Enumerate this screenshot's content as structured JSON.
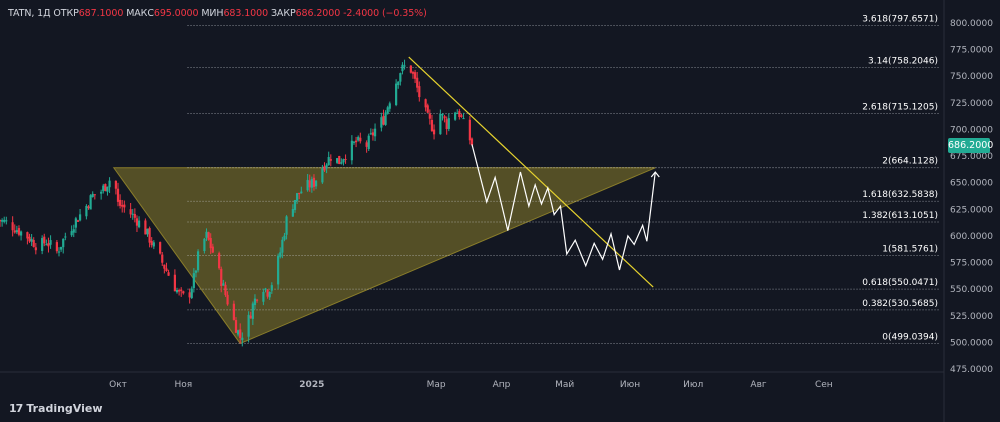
{
  "header": {
    "symbol": "TATN, 1Д",
    "open_label": "ОТКР",
    "open": "687.1000",
    "high_label": "МАКС",
    "high": "695.0000",
    "low_label": "МИН",
    "low": "683.1000",
    "close_label": "ЗАКР",
    "close": "686.2000",
    "change": "-2.4000 (−0.35%)"
  },
  "brand": {
    "logo": "17",
    "name": "TradingView"
  },
  "colors": {
    "up": "#22ab94",
    "down": "#f23645",
    "fib": "#d1d4dc",
    "triangle": "#8a7d2a",
    "trend": "#e6d32e",
    "projection": "#ffffff"
  },
  "chart_data": {
    "type": "candlestick",
    "title": "",
    "ylim": [
      470,
      810
    ],
    "y_ticks": [
      "475.0000",
      "500.0000",
      "525.0000",
      "550.0000",
      "575.0000",
      "600.0000",
      "625.0000",
      "650.0000",
      "675.0000",
      "700.0000",
      "725.0000",
      "750.0000",
      "775.0000",
      "800.0000"
    ],
    "x_ticks": [
      {
        "label": "Окт",
        "date": "2024-10-01"
      },
      {
        "label": "Ноя",
        "date": "2024-11-01"
      },
      {
        "label": "2025",
        "date": "2025-01-01"
      },
      {
        "label": "Мар",
        "date": "2025-03-01"
      },
      {
        "label": "Апр",
        "date": "2025-04-01"
      },
      {
        "label": "Май",
        "date": "2025-05-01"
      },
      {
        "label": "Июн",
        "date": "2025-06-01"
      },
      {
        "label": "Июл",
        "date": "2025-07-01"
      },
      {
        "label": "Авг",
        "date": "2025-08-01"
      },
      {
        "label": "Сен",
        "date": "2025-09-01"
      }
    ],
    "last_price": "686.2000",
    "fib_levels": [
      {
        "label": "3.618(797.6571)",
        "value": 797.6571
      },
      {
        "label": "3.14(758.2046)",
        "value": 758.2046
      },
      {
        "label": "2.618(715.1205)",
        "value": 715.1205
      },
      {
        "label": "2(664.1128)",
        "value": 664.1128
      },
      {
        "label": "1.618(632.5838)",
        "value": 632.5838
      },
      {
        "label": "1.382(613.1051)",
        "value": 613.1051
      },
      {
        "label": "1(581.5761)",
        "value": 581.5761
      },
      {
        "label": "0.618(550.0471)",
        "value": 550.0471
      },
      {
        "label": "0.382(530.5685)",
        "value": 530.5685
      },
      {
        "label": "0(499.0394)",
        "value": 499.0394
      }
    ],
    "price_path": [
      [
        "2024-08-05",
        615
      ],
      [
        "2024-08-10",
        612
      ],
      [
        "2024-08-15",
        605
      ],
      [
        "2024-08-20",
        598
      ],
      [
        "2024-08-24",
        590
      ],
      [
        "2024-08-28",
        595
      ],
      [
        "2024-09-02",
        585
      ],
      [
        "2024-09-06",
        600
      ],
      [
        "2024-09-10",
        612
      ],
      [
        "2024-09-15",
        625
      ],
      [
        "2024-09-19",
        638
      ],
      [
        "2024-09-23",
        642
      ],
      [
        "2024-09-26",
        650
      ],
      [
        "2024-09-29",
        658
      ],
      [
        "2024-10-01",
        630
      ],
      [
        "2024-10-05",
        625
      ],
      [
        "2024-10-10",
        615
      ],
      [
        "2024-10-14",
        605
      ],
      [
        "2024-10-18",
        590
      ],
      [
        "2024-10-22",
        575
      ],
      [
        "2024-10-26",
        560
      ],
      [
        "2024-10-30",
        545
      ],
      [
        "2024-11-03",
        540
      ],
      [
        "2024-11-06",
        560
      ],
      [
        "2024-11-09",
        590
      ],
      [
        "2024-11-12",
        600
      ],
      [
        "2024-11-15",
        585
      ],
      [
        "2024-11-18",
        565
      ],
      [
        "2024-11-21",
        545
      ],
      [
        "2024-11-25",
        520
      ],
      [
        "2024-11-28",
        505
      ],
      [
        "2024-12-01",
        515
      ],
      [
        "2024-12-04",
        535
      ],
      [
        "2024-12-08",
        555
      ],
      [
        "2024-12-11",
        548
      ],
      [
        "2024-12-14",
        560
      ],
      [
        "2024-12-17",
        585
      ],
      [
        "2024-12-20",
        615
      ],
      [
        "2024-12-24",
        635
      ],
      [
        "2024-12-28",
        645
      ],
      [
        "2025-01-02",
        650
      ],
      [
        "2025-01-06",
        665
      ],
      [
        "2025-01-10",
        675
      ],
      [
        "2025-01-14",
        670
      ],
      [
        "2025-01-18",
        680
      ],
      [
        "2025-01-22",
        688
      ],
      [
        "2025-01-27",
        685
      ],
      [
        "2025-01-31",
        700
      ],
      [
        "2025-02-04",
        710
      ],
      [
        "2025-02-08",
        735
      ],
      [
        "2025-02-12",
        755
      ],
      [
        "2025-02-16",
        762
      ],
      [
        "2025-02-19",
        745
      ],
      [
        "2025-02-22",
        725
      ],
      [
        "2025-02-25",
        710
      ],
      [
        "2025-02-28",
        700
      ],
      [
        "2025-03-03",
        715
      ],
      [
        "2025-03-06",
        705
      ],
      [
        "2025-03-09",
        720
      ],
      [
        "2025-03-12",
        715
      ],
      [
        "2025-03-15",
        700
      ],
      [
        "2025-03-18",
        686.2
      ]
    ],
    "projection_path": [
      [
        "2025-03-18",
        686
      ],
      [
        "2025-03-25",
        632
      ],
      [
        "2025-03-29",
        655
      ],
      [
        "2025-04-04",
        605
      ],
      [
        "2025-04-10",
        660
      ],
      [
        "2025-04-14",
        628
      ],
      [
        "2025-04-17",
        648
      ],
      [
        "2025-04-20",
        630
      ],
      [
        "2025-04-23",
        645
      ],
      [
        "2025-04-26",
        620
      ],
      [
        "2025-04-29",
        628
      ],
      [
        "2025-05-02",
        583
      ],
      [
        "2025-05-06",
        596
      ],
      [
        "2025-05-11",
        572
      ],
      [
        "2025-05-15",
        593
      ],
      [
        "2025-05-19",
        578
      ],
      [
        "2025-05-23",
        602
      ],
      [
        "2025-05-27",
        568
      ],
      [
        "2025-05-31",
        600
      ],
      [
        "2025-06-03",
        592
      ],
      [
        "2025-06-07",
        610
      ],
      [
        "2025-06-09",
        595
      ],
      [
        "2025-06-13",
        660
      ]
    ],
    "trendline": [
      [
        "2025-02-16",
        768
      ],
      [
        "2025-06-12",
        552
      ]
    ],
    "triangle": [
      [
        "2024-09-29",
        664
      ],
      [
        "2025-06-13",
        664
      ],
      [
        "2024-11-28",
        499
      ]
    ]
  }
}
